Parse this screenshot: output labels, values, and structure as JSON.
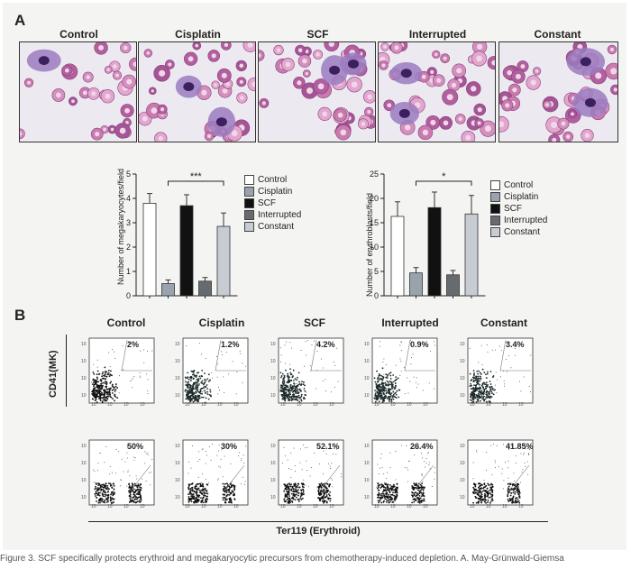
{
  "panels": {
    "a": "A",
    "b": "B"
  },
  "micrographs": [
    "Control",
    "Cisplatin",
    "SCF",
    "Interrupted",
    "Constant"
  ],
  "colors": {
    "control": "#ffffff",
    "cisplatin": "#9aa3ad",
    "scf": "#111111",
    "interrupted": "#666b70",
    "constant": "#c6ccd2"
  },
  "chart_data": [
    {
      "type": "bar",
      "ylabel": "Number of megakaryocytes/field",
      "categories": [
        "Control",
        "Cisplatin",
        "SCF",
        "Interrupted",
        "Constant"
      ],
      "values": [
        3.8,
        0.5,
        3.7,
        0.6,
        2.85
      ],
      "errors": [
        0.4,
        0.15,
        0.45,
        0.15,
        0.55
      ],
      "ylim": [
        0,
        5
      ],
      "yticks": [
        "0",
        "1",
        "2",
        "3",
        "4",
        "5"
      ],
      "significance": "***",
      "legend": [
        "Control",
        "Cisplatin",
        "SCF",
        "Interrupted",
        "Constant"
      ]
    },
    {
      "type": "bar",
      "ylabel": "Number of erythroblasts/field",
      "categories": [
        "Control",
        "Cisplatin",
        "SCF",
        "Interrupted",
        "Constant"
      ],
      "values": [
        16.3,
        4.7,
        18.1,
        4.3,
        16.8
      ],
      "errors": [
        3.0,
        1.1,
        3.2,
        0.9,
        3.8
      ],
      "ylim": [
        0,
        25
      ],
      "yticks": [
        "0",
        "5",
        "10",
        "15",
        "20",
        "25"
      ],
      "significance": "*",
      "legend": [
        "Control",
        "Cisplatin",
        "SCF",
        "Interrupted",
        "Constant"
      ]
    }
  ],
  "flow": {
    "columns": [
      "Control",
      "Cisplatin",
      "SCF",
      "Interrupted",
      "Constant"
    ],
    "row1_pct": [
      "2%",
      "1.2%",
      "4.2%",
      "0.9%",
      "3.4%"
    ],
    "row2_pct": [
      "50%",
      "30%",
      "52.1%",
      "26.4%",
      "41.85%"
    ],
    "y_label": "CD41(MK)",
    "x_label": "Ter119 (Erythroid)",
    "tick": "10"
  },
  "caption": "Figure 3. SCF specifically protects erythroid and megakaryocytic precursors from chemotherapy-induced depletion. A. May-Grünwald-Giemsa"
}
